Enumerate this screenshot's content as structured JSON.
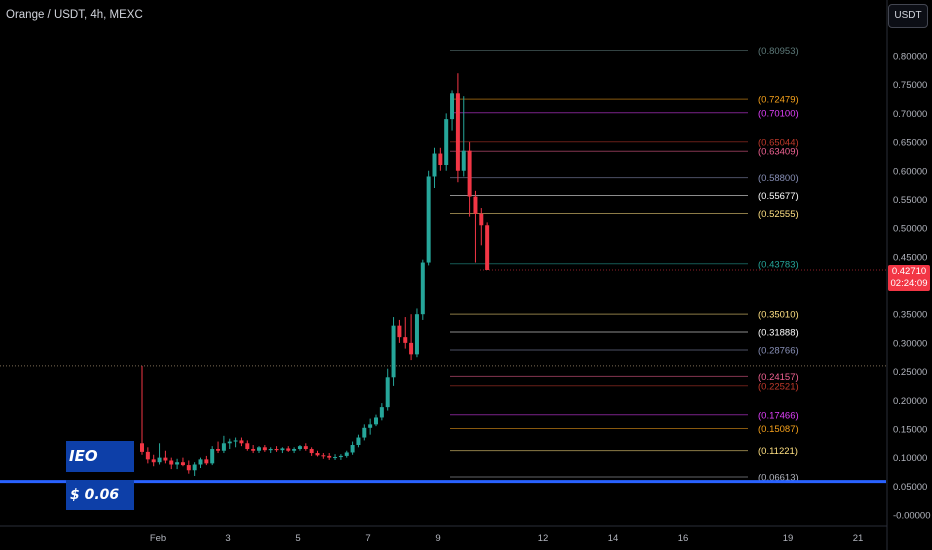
{
  "header": {
    "title": "Orange / USDT, 4h, MEXC"
  },
  "currency_button": {
    "label": "USDT"
  },
  "annotation": {
    "title": "IEO Price:",
    "value": "$ 0.06"
  },
  "current_price": {
    "price": "0.42710",
    "countdown": "02:24:09"
  },
  "colors": {
    "up": "#26a69a",
    "down": "#f23645",
    "ieo_line": "#2962ff",
    "ieo_box": "#0d3fa8",
    "background": "#000000",
    "axis_text": "#b2b5be"
  },
  "chart_data": {
    "type": "candlestick",
    "ylim": [
      -0.02,
      0.83
    ],
    "y_ticks": [
      {
        "v": 0.8,
        "label": "0.80000"
      },
      {
        "v": 0.75,
        "label": "0.75000"
      },
      {
        "v": 0.7,
        "label": "0.70000"
      },
      {
        "v": 0.65,
        "label": "0.65000"
      },
      {
        "v": 0.6,
        "label": "0.60000"
      },
      {
        "v": 0.55,
        "label": "0.55000"
      },
      {
        "v": 0.5,
        "label": "0.50000"
      },
      {
        "v": 0.45,
        "label": "0.45000"
      },
      {
        "v": 0.35,
        "label": "0.35000"
      },
      {
        "v": 0.3,
        "label": "0.30000"
      },
      {
        "v": 0.25,
        "label": "0.25000"
      },
      {
        "v": 0.2,
        "label": "0.20000"
      },
      {
        "v": 0.15,
        "label": "0.15000"
      },
      {
        "v": 0.1,
        "label": "0.10000"
      },
      {
        "v": 0.05,
        "label": "0.05000"
      },
      {
        "v": 0.0,
        "label": "-0.00000"
      }
    ],
    "x_ticks": [
      {
        "day": 1,
        "label": "Feb"
      },
      {
        "day": 3,
        "label": "3"
      },
      {
        "day": 5,
        "label": "5"
      },
      {
        "day": 7,
        "label": "7"
      },
      {
        "day": 9,
        "label": "9"
      },
      {
        "day": 12,
        "label": "12"
      },
      {
        "day": 14,
        "label": "14"
      },
      {
        "day": 16,
        "label": "16"
      },
      {
        "day": 19,
        "label": "19"
      },
      {
        "day": 21,
        "label": "21"
      }
    ],
    "fib_levels": [
      {
        "value": 0.80953,
        "label": "(0.80953)",
        "color": "#5d7a7a"
      },
      {
        "value": 0.72479,
        "label": "(0.72479)",
        "color": "#f7a21b"
      },
      {
        "value": 0.701,
        "label": "(0.70100)",
        "color": "#e040fb"
      },
      {
        "value": 0.65044,
        "label": "(0.65044)",
        "color": "#c0392b"
      },
      {
        "value": 0.63409,
        "label": "(0.63409)",
        "color": "#f06292"
      },
      {
        "value": 0.588,
        "label": "(0.58800)",
        "color": "#8890b8"
      },
      {
        "value": 0.55677,
        "label": "(0.55677)",
        "color": "#ffffff"
      },
      {
        "value": 0.52555,
        "label": "(0.52555)",
        "color": "#ffe082"
      },
      {
        "value": 0.43783,
        "label": "(0.43783)",
        "color": "#26a69a"
      },
      {
        "value": 0.3501,
        "label": "(0.35010)",
        "color": "#ffe082"
      },
      {
        "value": 0.31888,
        "label": "(0.31888)",
        "color": "#ffffff"
      },
      {
        "value": 0.28766,
        "label": "(0.28766)",
        "color": "#8890b8"
      },
      {
        "value": 0.24157,
        "label": "(0.24157)",
        "color": "#f06292"
      },
      {
        "value": 0.22521,
        "label": "(0.22521)",
        "color": "#c0392b"
      },
      {
        "value": 0.17466,
        "label": "(0.17466)",
        "color": "#e040fb"
      },
      {
        "value": 0.15087,
        "label": "(0.15087)",
        "color": "#f7a21b"
      },
      {
        "value": 0.11221,
        "label": "(0.11221)",
        "color": "#ffe082"
      },
      {
        "value": 0.06613,
        "label": "(0.06613)",
        "color": "#b2b5be"
      }
    ],
    "ieo_price": 0.06,
    "candles": [
      [
        0.125,
        0.26,
        0.105,
        0.11
      ],
      [
        0.11,
        0.118,
        0.09,
        0.097
      ],
      [
        0.097,
        0.105,
        0.085,
        0.092
      ],
      [
        0.092,
        0.125,
        0.088,
        0.1
      ],
      [
        0.1,
        0.112,
        0.09,
        0.095
      ],
      [
        0.095,
        0.1,
        0.08,
        0.088
      ],
      [
        0.088,
        0.098,
        0.08,
        0.092
      ],
      [
        0.092,
        0.1,
        0.085,
        0.087
      ],
      [
        0.087,
        0.095,
        0.072,
        0.078
      ],
      [
        0.078,
        0.092,
        0.068,
        0.088
      ],
      [
        0.088,
        0.1,
        0.082,
        0.097
      ],
      [
        0.097,
        0.103,
        0.087,
        0.09
      ],
      [
        0.09,
        0.12,
        0.087,
        0.115
      ],
      [
        0.115,
        0.128,
        0.108,
        0.112
      ],
      [
        0.112,
        0.138,
        0.108,
        0.125
      ],
      [
        0.125,
        0.133,
        0.115,
        0.128
      ],
      [
        0.128,
        0.135,
        0.118,
        0.13
      ],
      [
        0.13,
        0.135,
        0.12,
        0.125
      ],
      [
        0.125,
        0.13,
        0.112,
        0.115
      ],
      [
        0.115,
        0.122,
        0.108,
        0.112
      ],
      [
        0.112,
        0.12,
        0.108,
        0.118
      ],
      [
        0.118,
        0.122,
        0.11,
        0.113
      ],
      [
        0.113,
        0.118,
        0.108,
        0.115
      ],
      [
        0.115,
        0.12,
        0.11,
        0.113
      ],
      [
        0.113,
        0.118,
        0.108,
        0.116
      ],
      [
        0.116,
        0.12,
        0.11,
        0.112
      ],
      [
        0.112,
        0.118,
        0.108,
        0.115
      ],
      [
        0.115,
        0.122,
        0.112,
        0.12
      ],
      [
        0.12,
        0.125,
        0.112,
        0.115
      ],
      [
        0.115,
        0.118,
        0.103,
        0.108
      ],
      [
        0.108,
        0.112,
        0.102,
        0.104
      ],
      [
        0.104,
        0.108,
        0.098,
        0.103
      ],
      [
        0.103,
        0.108,
        0.096,
        0.1
      ],
      [
        0.1,
        0.106,
        0.096,
        0.101
      ],
      [
        0.101,
        0.106,
        0.096,
        0.103
      ],
      [
        0.103,
        0.112,
        0.1,
        0.109
      ],
      [
        0.109,
        0.128,
        0.105,
        0.122
      ],
      [
        0.122,
        0.14,
        0.118,
        0.135
      ],
      [
        0.135,
        0.158,
        0.13,
        0.152
      ],
      [
        0.152,
        0.168,
        0.14,
        0.158
      ],
      [
        0.158,
        0.175,
        0.155,
        0.17
      ],
      [
        0.17,
        0.195,
        0.165,
        0.188
      ],
      [
        0.188,
        0.255,
        0.182,
        0.24
      ],
      [
        0.24,
        0.345,
        0.225,
        0.33
      ],
      [
        0.33,
        0.34,
        0.3,
        0.31
      ],
      [
        0.31,
        0.345,
        0.29,
        0.3
      ],
      [
        0.3,
        0.35,
        0.27,
        0.28
      ],
      [
        0.28,
        0.36,
        0.275,
        0.35
      ],
      [
        0.35,
        0.445,
        0.34,
        0.44
      ],
      [
        0.44,
        0.6,
        0.435,
        0.59
      ],
      [
        0.59,
        0.64,
        0.57,
        0.63
      ],
      [
        0.63,
        0.64,
        0.6,
        0.61
      ],
      [
        0.61,
        0.7,
        0.6,
        0.69
      ],
      [
        0.69,
        0.74,
        0.67,
        0.735
      ],
      [
        0.735,
        0.77,
        0.58,
        0.6
      ],
      [
        0.6,
        0.73,
        0.59,
        0.635
      ],
      [
        0.635,
        0.65,
        0.52,
        0.555
      ],
      [
        0.555,
        0.565,
        0.44,
        0.525
      ],
      [
        0.525,
        0.535,
        0.47,
        0.505
      ],
      [
        0.505,
        0.51,
        0.427,
        0.427
      ]
    ]
  }
}
